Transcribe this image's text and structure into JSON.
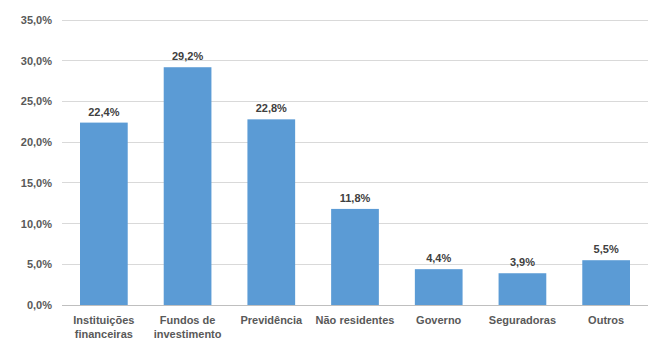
{
  "chart_data": {
    "type": "bar",
    "categories": [
      "Instituições\nfinanceiras",
      "Fundos de\ninvestimento",
      "Previdência",
      "Não residentes",
      "Governo",
      "Seguradoras",
      "Outros"
    ],
    "values": [
      22.4,
      29.2,
      22.8,
      11.8,
      4.4,
      3.9,
      5.5
    ],
    "value_labels": [
      "22,4%",
      "29,2%",
      "22,8%",
      "11,8%",
      "4,4%",
      "3,9%",
      "5,5%"
    ],
    "color": "#5b9bd5",
    "ylim": [
      0,
      35
    ],
    "yticks": [
      {
        "value": 0,
        "label": "0,0%"
      },
      {
        "value": 5,
        "label": "5,0%"
      },
      {
        "value": 10,
        "label": "10,0%"
      },
      {
        "value": 15,
        "label": "15,0%"
      },
      {
        "value": 20,
        "label": "20,0%"
      },
      {
        "value": 25,
        "label": "25,0%"
      },
      {
        "value": 30,
        "label": "30,0%"
      },
      {
        "value": 35,
        "label": "35,0%"
      }
    ],
    "grid": true,
    "data_labels": true
  }
}
